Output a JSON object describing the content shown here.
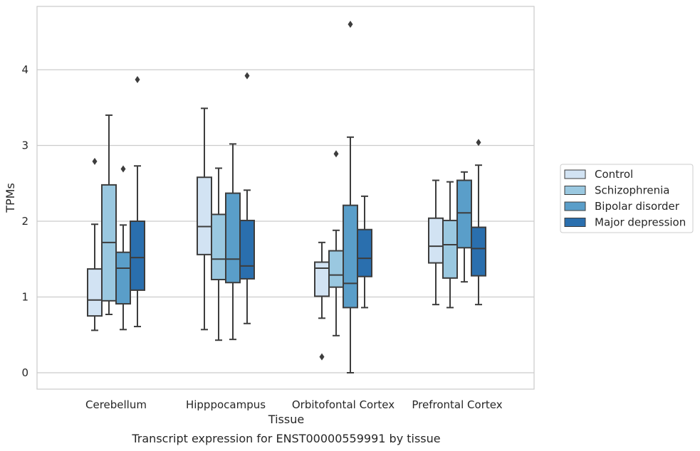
{
  "chart_data": {
    "type": "box",
    "caption": "Transcript expression for ENST00000559991 by tissue",
    "xlabel": "Tissue",
    "ylabel": "TPMs",
    "ylim": [
      -0.22,
      4.85
    ],
    "yticks": [
      0,
      1,
      2,
      3,
      4
    ],
    "grid": "horizontal",
    "legend_position": "right",
    "categories": [
      "Cerebellum",
      "Hipppocampus",
      "Orbitofontal Cortex",
      "Prefrontal Cortex"
    ],
    "series": [
      {
        "name": "Control",
        "color": "#d2e3f3",
        "boxes": [
          {
            "whislo": 0.56,
            "q1": 0.75,
            "med": 0.96,
            "q3": 1.37,
            "whishi": 1.96,
            "fliers": [
              2.79
            ]
          },
          {
            "whislo": 0.57,
            "q1": 1.56,
            "med": 1.93,
            "q3": 2.58,
            "whishi": 3.49,
            "fliers": []
          },
          {
            "whislo": 0.72,
            "q1": 1.01,
            "med": 1.38,
            "q3": 1.46,
            "whishi": 1.72,
            "fliers": [
              0.21
            ]
          },
          {
            "whislo": 0.9,
            "q1": 1.45,
            "med": 1.67,
            "q3": 2.04,
            "whishi": 2.54,
            "fliers": []
          }
        ]
      },
      {
        "name": "Schizophrenia",
        "color": "#9ac8e0",
        "boxes": [
          {
            "whislo": 0.77,
            "q1": 0.95,
            "med": 1.72,
            "q3": 2.48,
            "whishi": 3.4,
            "fliers": []
          },
          {
            "whislo": 0.43,
            "q1": 1.23,
            "med": 1.5,
            "q3": 2.09,
            "whishi": 2.7,
            "fliers": []
          },
          {
            "whislo": 0.49,
            "q1": 1.13,
            "med": 1.29,
            "q3": 1.61,
            "whishi": 1.88,
            "fliers": [
              2.89
            ]
          },
          {
            "whislo": 0.86,
            "q1": 1.25,
            "med": 1.69,
            "q3": 2.01,
            "whishi": 2.52,
            "fliers": []
          }
        ]
      },
      {
        "name": "Bipolar disorder",
        "color": "#5a9ec9",
        "boxes": [
          {
            "whislo": 0.57,
            "q1": 0.91,
            "med": 1.38,
            "q3": 1.59,
            "whishi": 1.95,
            "fliers": [
              2.69
            ]
          },
          {
            "whislo": 0.44,
            "q1": 1.19,
            "med": 1.5,
            "q3": 2.37,
            "whishi": 3.02,
            "fliers": []
          },
          {
            "whislo": 0.0,
            "q1": 0.86,
            "med": 1.18,
            "q3": 2.21,
            "whishi": 3.11,
            "fliers": [
              4.6
            ]
          },
          {
            "whislo": 1.2,
            "q1": 1.65,
            "med": 2.11,
            "q3": 2.54,
            "whishi": 2.65,
            "fliers": []
          }
        ]
      },
      {
        "name": "Major depression",
        "color": "#2a6fae",
        "boxes": [
          {
            "whislo": 0.61,
            "q1": 1.09,
            "med": 1.52,
            "q3": 2.0,
            "whishi": 2.73,
            "fliers": [
              3.87
            ]
          },
          {
            "whislo": 0.65,
            "q1": 1.24,
            "med": 1.41,
            "q3": 2.01,
            "whishi": 2.41,
            "fliers": [
              3.92
            ]
          },
          {
            "whislo": 0.86,
            "q1": 1.27,
            "med": 1.51,
            "q3": 1.89,
            "whishi": 2.33,
            "fliers": []
          },
          {
            "whislo": 0.9,
            "q1": 1.28,
            "med": 1.64,
            "q3": 1.92,
            "whishi": 2.74,
            "fliers": [
              3.04
            ]
          }
        ]
      }
    ]
  }
}
